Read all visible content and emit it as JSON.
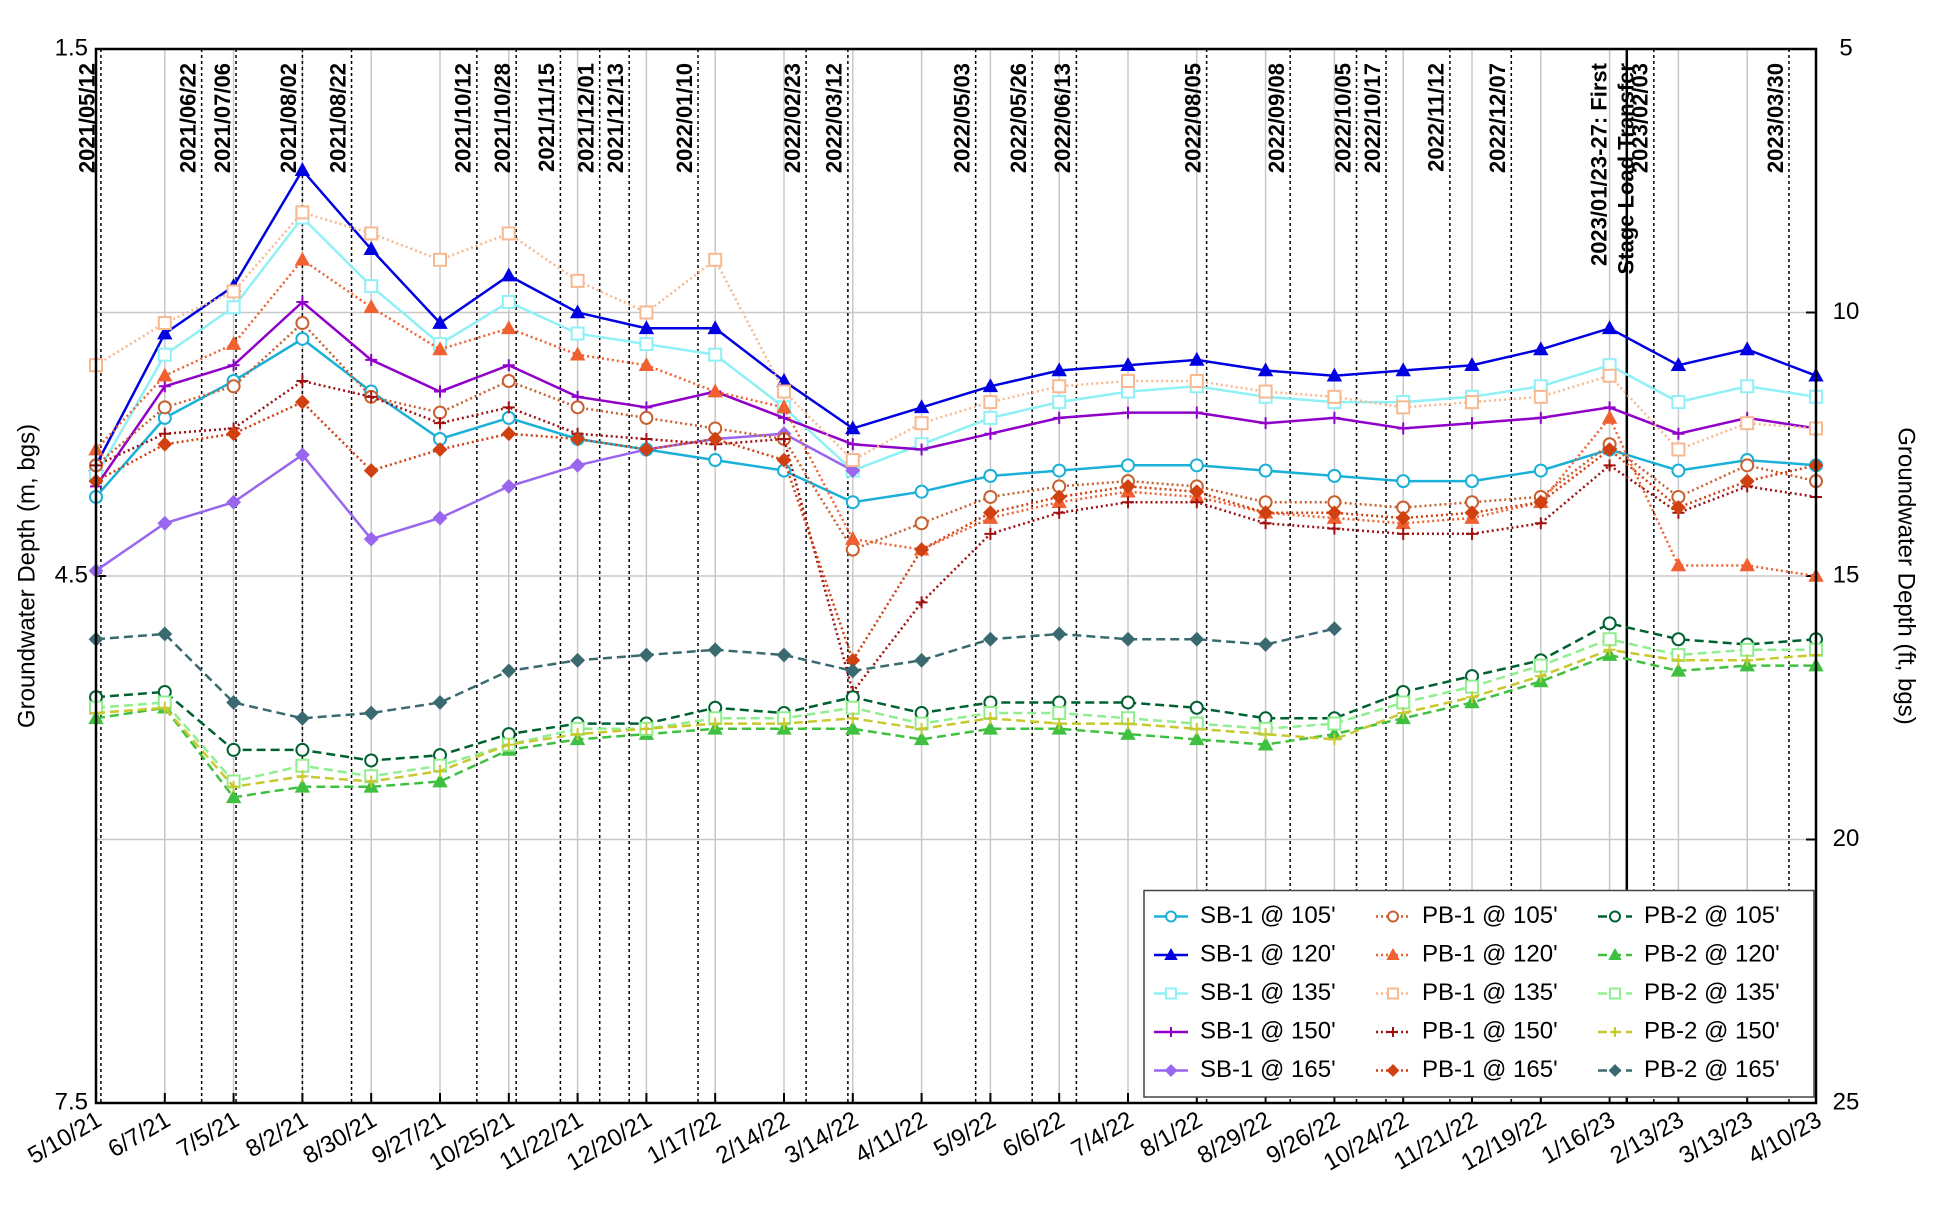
{
  "chart_data": {
    "type": "line",
    "y_label": "Groundwater Depth (m, bgs)",
    "y2_label": "Groundwater Depth (ft, bgs)",
    "ylim": [
      1.5,
      7.5
    ],
    "yticks": [
      1.5,
      4.5,
      7.5
    ],
    "y_inverted": true,
    "y2lim": [
      5,
      25
    ],
    "y2ticks": [
      5,
      10,
      15,
      20,
      25
    ],
    "xlim": [
      "5/10/21",
      "4/10/23"
    ],
    "xticks": [
      "5/10/21",
      "6/7/21",
      "7/5/21",
      "8/2/21",
      "8/30/21",
      "9/27/21",
      "10/25/21",
      "11/22/21",
      "12/20/21",
      "1/17/22",
      "2/14/22",
      "3/14/22",
      "4/11/22",
      "5/9/22",
      "6/6/22",
      "7/4/22",
      "8/1/22",
      "8/29/22",
      "9/26/22",
      "10/24/22",
      "11/21/22",
      "12/19/22",
      "1/16/23",
      "2/13/23",
      "3/13/23",
      "4/10/23"
    ],
    "x": [
      "5/10/21",
      "6/7/21",
      "7/5/21",
      "8/2/21",
      "8/30/21",
      "9/27/21",
      "10/25/21",
      "11/22/21",
      "12/20/21",
      "1/17/22",
      "2/14/22",
      "3/14/22",
      "4/11/22",
      "5/9/22",
      "6/6/22",
      "7/4/22",
      "8/1/22",
      "8/29/22",
      "9/26/22",
      "10/24/22",
      "11/21/22",
      "12/19/22",
      "1/16/23",
      "2/13/23",
      "3/13/23",
      "4/10/23"
    ],
    "grid": true,
    "legend": "lower right",
    "events": [
      {
        "label": [
          "2021/05/12"
        ],
        "line": "dotted"
      },
      {
        "label": [
          "2021/06/22"
        ],
        "line": "dotted"
      },
      {
        "label": [
          "2021/07/06"
        ],
        "line": "dotted"
      },
      {
        "label": [
          "2021/08/02"
        ],
        "line": "dotted"
      },
      {
        "label": [
          "2021/08/22"
        ],
        "line": "dotted"
      },
      {
        "label": [
          "2021/10/12"
        ],
        "line": "dotted"
      },
      {
        "label": [
          "2021/10/28"
        ],
        "line": "dotted"
      },
      {
        "label": [
          "2021/11/15"
        ],
        "line": "dotted"
      },
      {
        "label": [
          "2021/12/01"
        ],
        "line": "dotted"
      },
      {
        "label": [
          "2021/12/13"
        ],
        "line": "dotted"
      },
      {
        "label": [
          "2022/01/10"
        ],
        "line": "dotted"
      },
      {
        "label": [
          "2022/02/23"
        ],
        "line": "dotted"
      },
      {
        "label": [
          "2022/03/12"
        ],
        "line": "dotted"
      },
      {
        "label": [
          "2022/05/03"
        ],
        "line": "dotted"
      },
      {
        "label": [
          "2022/05/26"
        ],
        "line": "dotted"
      },
      {
        "label": [
          "2022/06/13"
        ],
        "line": "dotted"
      },
      {
        "label": [
          "2022/08/05"
        ],
        "line": "dotted"
      },
      {
        "label": [
          "2022/09/08"
        ],
        "line": "dotted"
      },
      {
        "label": [
          "2022/10/05"
        ],
        "line": "dotted"
      },
      {
        "label": [
          "2022/10/17"
        ],
        "line": "dotted"
      },
      {
        "label": [
          "2022/11/12"
        ],
        "line": "dotted"
      },
      {
        "label": [
          "2022/12/07"
        ],
        "line": "dotted"
      },
      {
        "label": [
          "2023/01/23-27: First",
          "Stage Load Transfer"
        ],
        "line": "solid"
      },
      {
        "label": [
          "2023/02/03"
        ],
        "line": "dotted"
      },
      {
        "label": [
          "2023/03/30"
        ],
        "line": "dotted"
      }
    ],
    "series": [
      {
        "name": "SB-1 @ 105'",
        "color": "#1ab0d8",
        "marker": "circle",
        "line": "solid",
        "axis": "y2",
        "values": [
          13.5,
          12.0,
          11.3,
          10.5,
          11.5,
          12.4,
          12.0,
          12.4,
          12.6,
          12.8,
          13.0,
          13.6,
          13.4,
          13.1,
          13.0,
          12.9,
          12.9,
          13.0,
          13.1,
          13.2,
          13.2,
          13.0,
          12.6,
          13.0,
          12.8,
          12.9
        ]
      },
      {
        "name": "SB-1 @ 120'",
        "color": "#0000e0",
        "marker": "triangle",
        "line": "solid",
        "axis": "y2",
        "values": [
          12.9,
          10.4,
          9.5,
          7.3,
          8.8,
          10.2,
          9.3,
          10.0,
          10.3,
          10.3,
          11.3,
          12.2,
          11.8,
          11.4,
          11.1,
          11.0,
          10.9,
          11.1,
          11.2,
          11.1,
          11.0,
          10.7,
          10.3,
          11.0,
          10.7,
          11.2
        ]
      },
      {
        "name": "SB-1 @ 135'",
        "color": "#8ff0f5",
        "marker": "square",
        "line": "solid",
        "axis": "y2",
        "values": [
          13.1,
          10.8,
          9.9,
          8.2,
          9.5,
          10.6,
          9.8,
          10.4,
          10.6,
          10.8,
          11.8,
          13.0,
          12.5,
          12.0,
          11.7,
          11.5,
          11.4,
          11.6,
          11.7,
          11.7,
          11.6,
          11.4,
          11.0,
          11.7,
          11.4,
          11.6
        ]
      },
      {
        "name": "SB-1 @ 150'",
        "color": "#9000c8",
        "marker": "plus",
        "line": "solid",
        "axis": "y2",
        "values": [
          13.3,
          11.4,
          11.0,
          9.8,
          10.9,
          11.5,
          11.0,
          11.6,
          11.8,
          11.5,
          12.0,
          12.5,
          12.6,
          12.3,
          12.0,
          11.9,
          11.9,
          12.1,
          12.0,
          12.2,
          12.1,
          12.0,
          11.8,
          12.3,
          12.0,
          12.2
        ]
      },
      {
        "name": "SB-1 @ 165'",
        "color": "#9966ee",
        "marker": "diamond",
        "line": "solid",
        "axis": "y2",
        "values": [
          14.9,
          14.0,
          13.6,
          12.7,
          14.3,
          13.9,
          13.3,
          12.9,
          12.6,
          12.4,
          12.3,
          13.0,
          null,
          null,
          null,
          null,
          null,
          null,
          null,
          null,
          null,
          null,
          null,
          null,
          null,
          null
        ]
      },
      {
        "name": "PB-1 @ 105'",
        "color": "#c86030",
        "marker": "circle",
        "line": "dotted",
        "axis": "y2",
        "values": [
          12.9,
          11.8,
          11.4,
          10.2,
          11.6,
          11.9,
          11.3,
          11.8,
          12.0,
          12.2,
          12.4,
          14.5,
          14.0,
          13.5,
          13.3,
          13.2,
          13.3,
          13.6,
          13.6,
          13.7,
          13.6,
          13.5,
          12.5,
          13.5,
          12.9,
          13.2
        ]
      },
      {
        "name": "PB-1 @ 120'",
        "color": "#f06030",
        "marker": "triangle",
        "line": "dotted",
        "axis": "y2",
        "values": [
          12.6,
          11.2,
          10.6,
          9.0,
          9.9,
          10.7,
          10.3,
          10.8,
          11.0,
          11.5,
          11.8,
          14.3,
          14.5,
          13.9,
          13.6,
          13.4,
          13.5,
          13.8,
          13.9,
          14.0,
          13.9,
          13.6,
          12.0,
          14.8,
          14.8,
          15.0
        ]
      },
      {
        "name": "PB-1 @ 135'",
        "color": "#f8b890",
        "marker": "square",
        "line": "dotted",
        "axis": "y2",
        "values": [
          11.0,
          10.2,
          9.6,
          8.1,
          8.5,
          9.0,
          8.5,
          9.4,
          10.0,
          9.0,
          11.5,
          12.8,
          12.1,
          11.7,
          11.4,
          11.3,
          11.3,
          11.5,
          11.6,
          11.8,
          11.7,
          11.6,
          11.2,
          12.6,
          12.1,
          12.2
        ]
      },
      {
        "name": "PB-1 @ 150'",
        "color": "#a01010",
        "marker": "plus",
        "line": "dotted",
        "axis": "y2",
        "values": [
          12.9,
          12.3,
          12.2,
          11.3,
          11.6,
          12.1,
          11.8,
          12.3,
          12.4,
          12.5,
          12.4,
          17.2,
          15.5,
          14.2,
          13.8,
          13.6,
          13.6,
          14.0,
          14.1,
          14.2,
          14.2,
          14.0,
          12.9,
          13.8,
          13.3,
          13.5
        ]
      },
      {
        "name": "PB-1 @ 165'",
        "color": "#d04010",
        "marker": "diamond",
        "line": "dotted",
        "axis": "y2",
        "values": [
          13.2,
          12.5,
          12.3,
          11.7,
          13.0,
          12.6,
          12.3,
          12.4,
          12.6,
          12.4,
          12.8,
          16.6,
          14.5,
          13.8,
          13.5,
          13.3,
          13.4,
          13.8,
          13.8,
          13.9,
          13.8,
          13.6,
          12.6,
          13.7,
          13.2,
          12.9
        ]
      },
      {
        "name": "PB-2 @ 105'",
        "color": "#006030",
        "marker": "circle",
        "line": "dashed",
        "axis": "y2",
        "values": [
          17.3,
          17.2,
          18.3,
          18.3,
          18.5,
          18.4,
          18.0,
          17.8,
          17.8,
          17.5,
          17.6,
          17.3,
          17.6,
          17.4,
          17.4,
          17.4,
          17.5,
          17.7,
          17.7,
          17.2,
          16.9,
          16.6,
          15.9,
          16.2,
          16.3,
          16.2
        ]
      },
      {
        "name": "PB-2 @ 120'",
        "color": "#40c040",
        "marker": "triangle",
        "line": "dashed",
        "axis": "y2",
        "values": [
          17.7,
          17.5,
          19.2,
          19.0,
          19.0,
          18.9,
          18.3,
          18.1,
          18.0,
          17.9,
          17.9,
          17.9,
          18.1,
          17.9,
          17.9,
          18.0,
          18.1,
          18.2,
          18.0,
          17.7,
          17.4,
          17.0,
          16.5,
          16.8,
          16.7,
          16.7
        ]
      },
      {
        "name": "PB-2 @ 135'",
        "color": "#90ee90",
        "marker": "square",
        "line": "dashed",
        "axis": "y2",
        "values": [
          17.5,
          17.4,
          18.9,
          18.6,
          18.8,
          18.6,
          18.2,
          17.9,
          17.9,
          17.7,
          17.7,
          17.5,
          17.8,
          17.6,
          17.6,
          17.7,
          17.8,
          17.9,
          17.8,
          17.4,
          17.1,
          16.7,
          16.2,
          16.5,
          16.4,
          16.4
        ]
      },
      {
        "name": "PB-2 @ 150'",
        "color": "#c8c830",
        "marker": "plus",
        "line": "dashed",
        "axis": "y2",
        "values": [
          17.6,
          17.5,
          19.0,
          18.8,
          18.9,
          18.7,
          18.2,
          18.0,
          17.9,
          17.8,
          17.8,
          17.7,
          17.9,
          17.7,
          17.8,
          17.8,
          17.9,
          18.0,
          18.1,
          17.6,
          17.3,
          16.9,
          16.4,
          16.6,
          16.6,
          16.5
        ]
      },
      {
        "name": "PB-2 @ 165'",
        "color": "#3a6a70",
        "marker": "diamond",
        "line": "dashed",
        "axis": "y2",
        "values": [
          16.2,
          16.1,
          17.4,
          17.7,
          17.6,
          17.4,
          16.8,
          16.6,
          16.5,
          16.4,
          16.5,
          16.8,
          16.6,
          16.2,
          16.1,
          16.2,
          16.2,
          16.3,
          16.0,
          null,
          null,
          null,
          null,
          null,
          null,
          null
        ]
      }
    ]
  }
}
